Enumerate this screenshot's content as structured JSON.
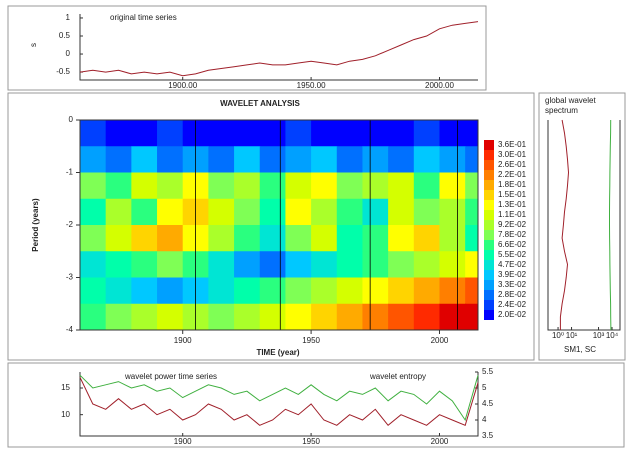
{
  "chart_data": [
    {
      "type": "line",
      "title": "original time series",
      "ylabel": "s",
      "x": [
        1860,
        1865,
        1870,
        1875,
        1880,
        1885,
        1890,
        1895,
        1900,
        1905,
        1910,
        1915,
        1920,
        1925,
        1930,
        1935,
        1940,
        1945,
        1950,
        1955,
        1960,
        1965,
        1970,
        1975,
        1980,
        1985,
        1990,
        1995,
        2000,
        2005,
        2010,
        2015
      ],
      "series": [
        {
          "color": "#a0202a",
          "values": [
            -0.5,
            -0.45,
            -0.5,
            -0.45,
            -0.55,
            -0.5,
            -0.55,
            -0.5,
            -0.6,
            -0.55,
            -0.45,
            -0.4,
            -0.35,
            -0.3,
            -0.25,
            -0.3,
            -0.3,
            -0.25,
            -0.2,
            -0.25,
            -0.3,
            -0.2,
            -0.15,
            -0.05,
            0.1,
            0.25,
            0.4,
            0.5,
            0.7,
            0.8,
            0.85,
            0.9
          ]
        }
      ],
      "xlim": [
        1860,
        2015
      ],
      "ylim": [
        -0.72,
        1.11
      ],
      "xticks": [
        {
          "value": 1900,
          "label": "1900.00"
        },
        {
          "value": 1950,
          "label": "1950.00"
        },
        {
          "value": 2000,
          "label": "2000.00"
        }
      ],
      "yticks": [
        -0.5,
        0,
        0.5,
        1
      ]
    },
    {
      "type": "contour",
      "title": "WAVELET ANALYSIS",
      "xlabel": "TIME (year)",
      "ylabel": "Period (years)",
      "x": [
        1860,
        1870,
        1880,
        1890,
        1900,
        1910,
        1920,
        1930,
        1940,
        1950,
        1960,
        1970,
        1980,
        1990,
        2000,
        2010
      ],
      "y": [
        0,
        -0.5,
        -1,
        -1.5,
        -2,
        -2.5,
        -3,
        -3.5
      ],
      "z": [
        [
          0.024,
          0.02,
          0.02,
          0.024,
          0.02,
          0.02,
          0.02,
          0.02,
          0.024,
          0.02,
          0.02,
          0.02,
          0.02,
          0.024,
          0.02,
          0.02
        ],
        [
          0.033,
          0.028,
          0.039,
          0.028,
          0.033,
          0.028,
          0.039,
          0.028,
          0.033,
          0.039,
          0.028,
          0.033,
          0.028,
          0.039,
          0.033,
          0.028
        ],
        [
          0.078,
          0.066,
          0.11,
          0.092,
          0.13,
          0.078,
          0.092,
          0.066,
          0.11,
          0.13,
          0.078,
          0.092,
          0.11,
          0.066,
          0.13,
          0.078
        ],
        [
          0.055,
          0.092,
          0.066,
          0.13,
          0.15,
          0.11,
          0.078,
          0.055,
          0.13,
          0.092,
          0.066,
          0.047,
          0.11,
          0.078,
          0.092,
          0.066
        ],
        [
          0.078,
          0.11,
          0.15,
          0.18,
          0.13,
          0.092,
          0.066,
          0.047,
          0.078,
          0.11,
          0.055,
          0.066,
          0.13,
          0.15,
          0.092,
          0.055
        ],
        [
          0.047,
          0.055,
          0.066,
          0.078,
          0.066,
          0.047,
          0.033,
          0.028,
          0.039,
          0.047,
          0.055,
          0.066,
          0.078,
          0.092,
          0.11,
          0.13
        ],
        [
          0.055,
          0.047,
          0.039,
          0.033,
          0.039,
          0.047,
          0.055,
          0.066,
          0.078,
          0.092,
          0.11,
          0.13,
          0.15,
          0.18,
          0.22,
          0.26
        ],
        [
          0.066,
          0.078,
          0.092,
          0.11,
          0.092,
          0.078,
          0.092,
          0.11,
          0.13,
          0.15,
          0.18,
          0.22,
          0.26,
          0.3,
          0.36,
          0.36
        ]
      ],
      "levels": [
        {
          "value": 0.36,
          "label": "3.6E-01",
          "color": "#e00000"
        },
        {
          "value": 0.3,
          "label": "3.0E-01",
          "color": "#ff2a00"
        },
        {
          "value": 0.26,
          "label": "2.6E-01",
          "color": "#ff5500"
        },
        {
          "value": 0.22,
          "label": "2.2E-01",
          "color": "#ff7f00"
        },
        {
          "value": 0.18,
          "label": "1.8E-01",
          "color": "#ffaa00"
        },
        {
          "value": 0.15,
          "label": "1.5E-01",
          "color": "#ffd400"
        },
        {
          "value": 0.13,
          "label": "1.3E-01",
          "color": "#ffff00"
        },
        {
          "value": 0.11,
          "label": "1.1E-01",
          "color": "#d4ff00"
        },
        {
          "value": 0.092,
          "label": "9.2E-02",
          "color": "#aaff2a"
        },
        {
          "value": 0.078,
          "label": "7.8E-02",
          "color": "#7fff55"
        },
        {
          "value": 0.066,
          "label": "6.6E-02",
          "color": "#2aff7f"
        },
        {
          "value": 0.055,
          "label": "5.5E-02",
          "color": "#00ffaa"
        },
        {
          "value": 0.047,
          "label": "4.7E-02",
          "color": "#00e5d4"
        },
        {
          "value": 0.039,
          "label": "3.9E-02",
          "color": "#00c8ff"
        },
        {
          "value": 0.033,
          "label": "3.3E-02",
          "color": "#00a0ff"
        },
        {
          "value": 0.028,
          "label": "2.8E-02",
          "color": "#0070ff"
        },
        {
          "value": 0.024,
          "label": "2.4E-02",
          "color": "#0040ff"
        },
        {
          "value": 0.02,
          "label": "2.0E-02",
          "color": "#0000ff"
        }
      ],
      "xlim": [
        1860,
        2015
      ],
      "ylim": [
        -4,
        0
      ],
      "xticks": [
        1900,
        1950,
        2000
      ],
      "yticks": [
        0,
        -1,
        -2,
        -3,
        -4
      ],
      "vlines": [
        1905,
        1938,
        1973,
        2007
      ]
    },
    {
      "type": "line",
      "orientation": "horizontal",
      "title": [
        "global wavelet",
        "spectrum"
      ],
      "xlabel": "SM1, SC",
      "y": [
        0,
        -0.25,
        -0.5,
        -0.75,
        -1,
        -1.25,
        -1.5,
        -1.75,
        -2,
        -2.25,
        -2.5,
        -2.75,
        -3,
        -3.25,
        -3.5,
        -3.75,
        -4
      ],
      "series": [
        {
          "color": "#a0202a",
          "values": [
            2,
            3,
            4,
            5,
            6,
            5,
            4,
            3,
            2.5,
            2,
            3,
            5,
            4,
            3,
            2,
            1.5,
            1.5
          ]
        },
        {
          "color": "#40b040",
          "values": [
            8000,
            7800,
            7500,
            7200,
            7000,
            6800,
            6600,
            6500,
            6500,
            6600,
            6800,
            7000,
            7200,
            7500,
            7800,
            8000,
            8200
          ]
        }
      ],
      "xlog": true,
      "xlim": [
        0.18,
        39000
      ],
      "ylim": [
        -4,
        0
      ],
      "xticks": [
        {
          "value": 1,
          "label": "10⁰"
        },
        {
          "value": 10,
          "label": "10¹"
        },
        {
          "value": 1000,
          "label": "10³"
        },
        {
          "value": 10000,
          "label": "10⁴"
        }
      ]
    },
    {
      "type": "line",
      "annotations": [
        "wavelet power time series",
        "wavelet entropy"
      ],
      "x": [
        1860,
        1865,
        1870,
        1875,
        1880,
        1885,
        1890,
        1895,
        1900,
        1905,
        1910,
        1915,
        1920,
        1925,
        1930,
        1935,
        1940,
        1945,
        1950,
        1955,
        1960,
        1965,
        1970,
        1975,
        1980,
        1985,
        1990,
        1995,
        2000,
        2005,
        2010,
        2015
      ],
      "series": [
        {
          "color": "#a0202a",
          "values": [
            17,
            12,
            11,
            13,
            11,
            12,
            10,
            11,
            9,
            10,
            12,
            11,
            9,
            10,
            8,
            9,
            11,
            10,
            12,
            9,
            8,
            10,
            9,
            11,
            8,
            10,
            9,
            8,
            10,
            9,
            8,
            16
          ]
        },
        {
          "color": "#40b040",
          "axis": "y2",
          "values": [
            5.4,
            5.0,
            5.1,
            5.2,
            5.0,
            5.1,
            4.9,
            5.0,
            4.7,
            4.9,
            5.1,
            5.0,
            4.8,
            4.9,
            4.6,
            4.8,
            5.0,
            4.8,
            5.1,
            4.8,
            4.6,
            4.9,
            4.8,
            5.0,
            4.6,
            4.9,
            4.8,
            4.5,
            4.9,
            4.6,
            4.0,
            5.4
          ]
        }
      ],
      "xlim": [
        1860,
        2015
      ],
      "ylim": [
        6,
        18
      ],
      "y2lim": [
        3.5,
        5.5
      ],
      "xticks": [
        1900,
        1950,
        2000
      ],
      "yticks": [
        10,
        15
      ],
      "y2ticks": [
        3.5,
        4,
        4.5,
        5,
        5.5
      ]
    }
  ]
}
